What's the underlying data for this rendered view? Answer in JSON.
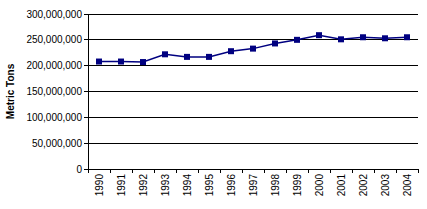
{
  "chart_data": {
    "type": "line",
    "y_label": "Metric Tons",
    "categories": [
      "1990",
      "1991",
      "1992",
      "1993",
      "1994",
      "1995",
      "1996",
      "1997",
      "1998",
      "1999",
      "2000",
      "2001",
      "2002",
      "2003",
      "2004"
    ],
    "values": [
      208000000,
      208000000,
      207000000,
      222000000,
      217000000,
      217000000,
      228000000,
      233000000,
      243000000,
      250000000,
      259000000,
      251000000,
      255000000,
      253000000,
      255000000
    ],
    "color": "#000080",
    "marker": "square",
    "line_style": "solid",
    "ylim": [
      0,
      300000000
    ],
    "yticks": [
      0,
      {
        "value": 50000000,
        "label": "50,000,000"
      },
      {
        "value": 100000000,
        "label": "100,000,000"
      },
      {
        "value": 150000000,
        "label": "150,000,000"
      },
      {
        "value": 200000000,
        "label": "200,000,000"
      },
      {
        "value": 250000000,
        "label": "250,000,000"
      },
      {
        "value": 300000000,
        "label": "300,000,000"
      }
    ],
    "grid": true
  }
}
